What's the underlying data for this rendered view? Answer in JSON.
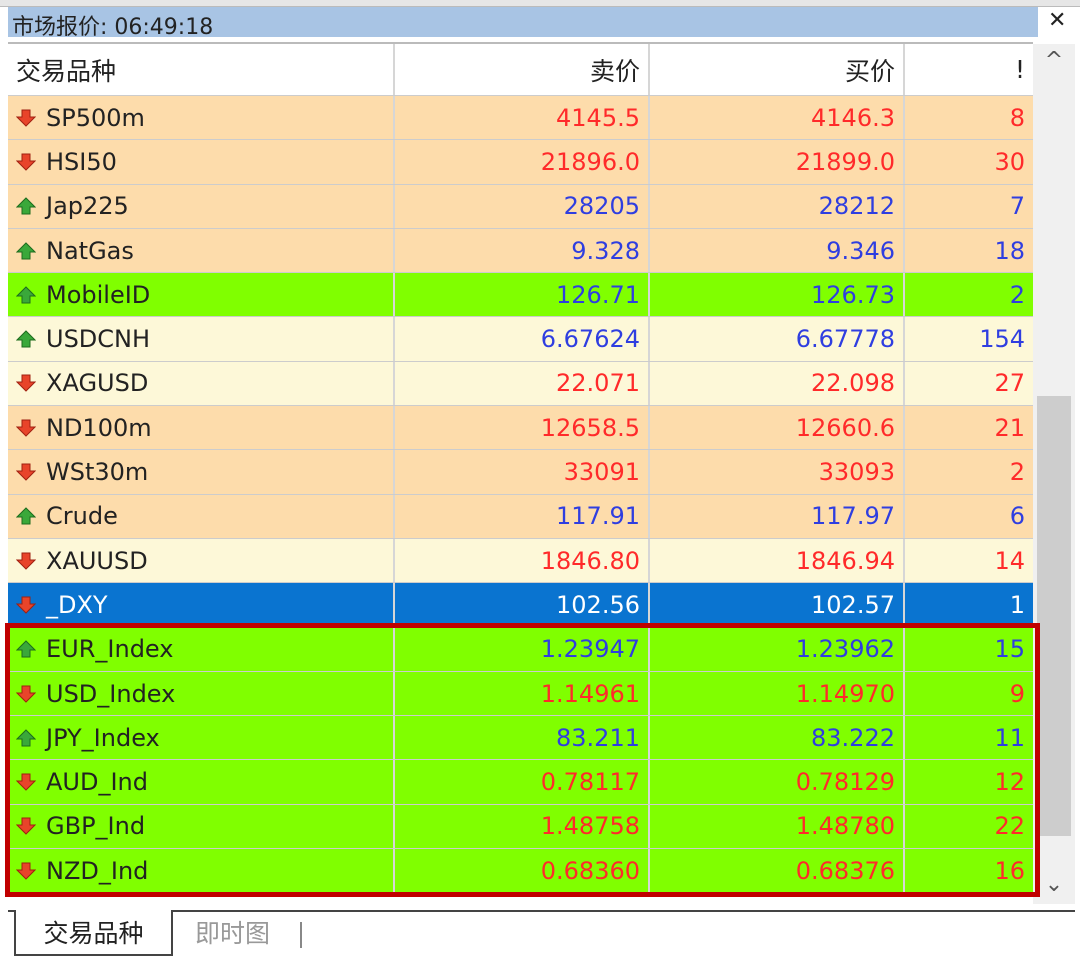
{
  "window": {
    "title": "市场报价: 06:49:18",
    "close_icon": "close-icon"
  },
  "colors": {
    "up_text": "#2f3ee0",
    "down_text": "#ff2a2a",
    "peach": "#fddcab",
    "cream": "#fdf8d8",
    "green": "#80ff00",
    "selected": "#0a74d0",
    "highlight_border": "#c00000"
  },
  "columns": [
    "交易品种",
    "卖价",
    "买价",
    "!"
  ],
  "rows": [
    {
      "symbol": "SP500m",
      "bid": "4145.5",
      "ask": "4146.3",
      "spread": "8",
      "dir": "down",
      "bg": "peach"
    },
    {
      "symbol": "HSI50",
      "bid": "21896.0",
      "ask": "21899.0",
      "spread": "30",
      "dir": "down",
      "bg": "peach"
    },
    {
      "symbol": "Jap225",
      "bid": "28205",
      "ask": "28212",
      "spread": "7",
      "dir": "up",
      "bg": "peach"
    },
    {
      "symbol": "NatGas",
      "bid": "9.328",
      "ask": "9.346",
      "spread": "18",
      "dir": "up",
      "bg": "peach"
    },
    {
      "symbol": "MobileID",
      "bid": "126.71",
      "ask": "126.73",
      "spread": "2",
      "dir": "up",
      "bg": "green"
    },
    {
      "symbol": "USDCNH",
      "bid": "6.67624",
      "ask": "6.67778",
      "spread": "154",
      "dir": "up",
      "bg": "cream"
    },
    {
      "symbol": "XAGUSD",
      "bid": "22.071",
      "ask": "22.098",
      "spread": "27",
      "dir": "down",
      "bg": "cream"
    },
    {
      "symbol": "ND100m",
      "bid": "12658.5",
      "ask": "12660.6",
      "spread": "21",
      "dir": "down",
      "bg": "peach"
    },
    {
      "symbol": "WSt30m",
      "bid": "33091",
      "ask": "33093",
      "spread": "2",
      "dir": "down",
      "bg": "peach"
    },
    {
      "symbol": "Crude",
      "bid": "117.91",
      "ask": "117.97",
      "spread": "6",
      "dir": "up",
      "bg": "peach"
    },
    {
      "symbol": "XAUUSD",
      "bid": "1846.80",
      "ask": "1846.94",
      "spread": "14",
      "dir": "down",
      "bg": "cream"
    },
    {
      "symbol": "_DXY",
      "bid": "102.56",
      "ask": "102.57",
      "spread": "1",
      "dir": "down",
      "bg": "selected"
    },
    {
      "symbol": "EUR_Index",
      "bid": "1.23947",
      "ask": "1.23962",
      "spread": "15",
      "dir": "up",
      "bg": "green"
    },
    {
      "symbol": "USD_Index",
      "bid": "1.14961",
      "ask": "1.14970",
      "spread": "9",
      "dir": "down",
      "bg": "green"
    },
    {
      "symbol": "JPY_Index",
      "bid": "83.211",
      "ask": "83.222",
      "spread": "11",
      "dir": "up",
      "bg": "green"
    },
    {
      "symbol": "AUD_Ind",
      "bid": "0.78117",
      "ask": "0.78129",
      "spread": "12",
      "dir": "down",
      "bg": "green"
    },
    {
      "symbol": "GBP_Ind",
      "bid": "1.48758",
      "ask": "1.48780",
      "spread": "22",
      "dir": "down",
      "bg": "green"
    },
    {
      "symbol": "NZD_Ind",
      "bid": "0.68360",
      "ask": "0.68376",
      "spread": "16",
      "dir": "down",
      "bg": "green"
    }
  ],
  "tabs": [
    {
      "label": "交易品种",
      "active": true
    },
    {
      "label": "即时图",
      "active": false
    }
  ],
  "scrollbar": {
    "up_glyph": "^",
    "down_glyph": "⌄"
  }
}
